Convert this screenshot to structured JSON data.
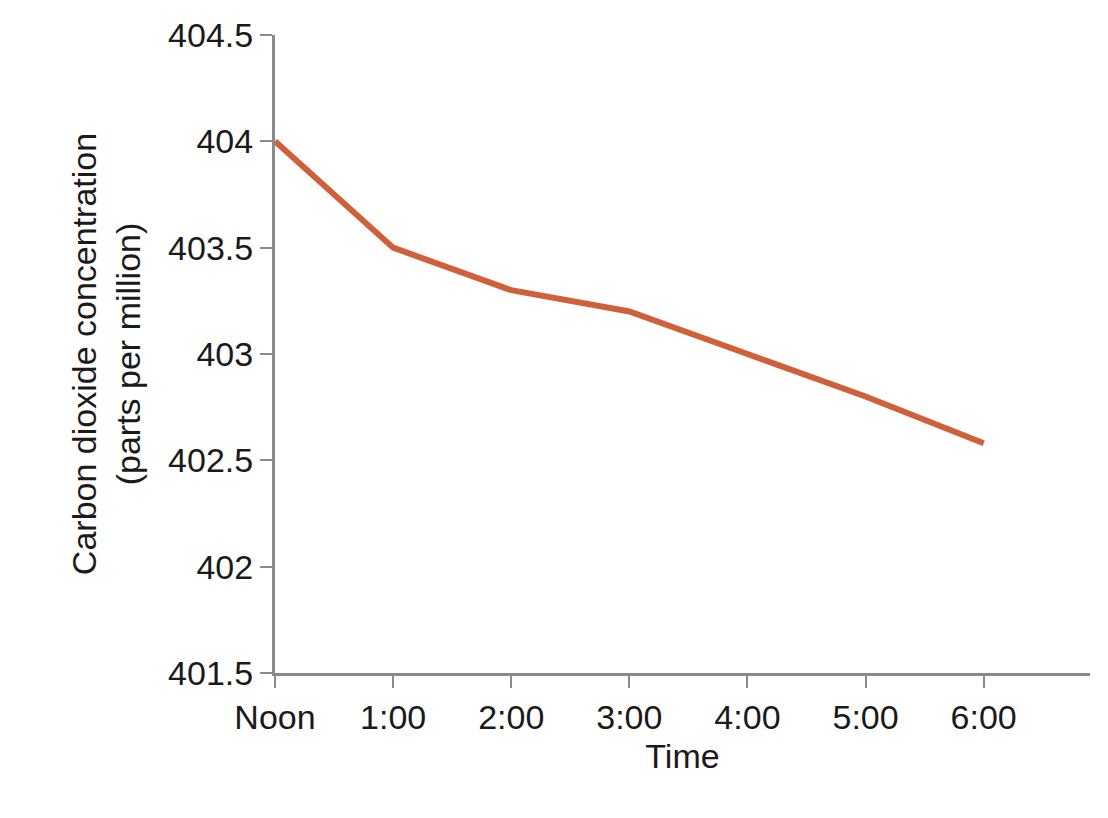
{
  "chart_data": {
    "type": "line",
    "x_label": "Time",
    "y_label": "Carbon dioxide concentration\n(parts per million)",
    "categories": [
      "Noon",
      "1:00",
      "2:00",
      "3:00",
      "4:00",
      "5:00",
      "6:00"
    ],
    "values": [
      404,
      403.5,
      403.3,
      403.2,
      403.0,
      402.8,
      402.58
    ],
    "color": "#d0603a",
    "ylim": [
      401.5,
      404.5
    ],
    "yticks": [
      401.5,
      402,
      402.5,
      403,
      403.5,
      404,
      404.5
    ],
    "grid": false
  }
}
